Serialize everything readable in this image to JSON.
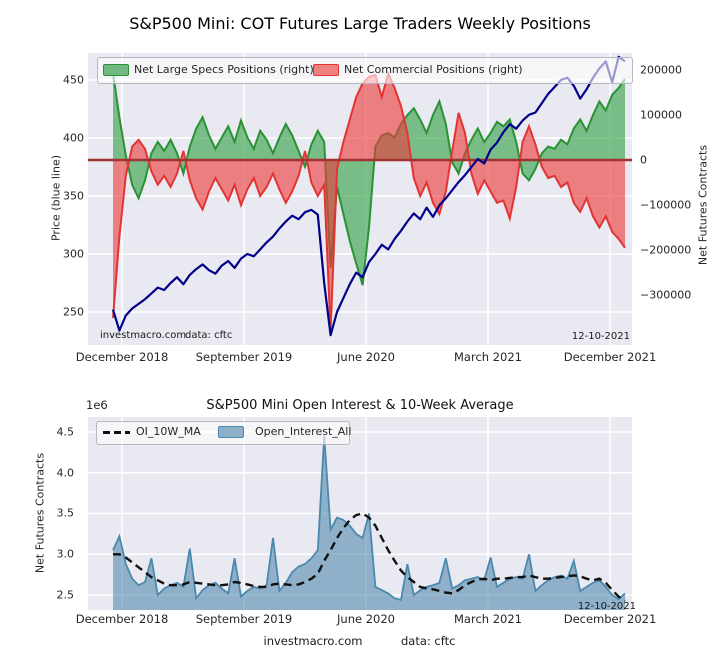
{
  "page": {
    "title": "S&P500 Mini: COT Futures Large Traders Weekly Positions"
  },
  "top_chart": {
    "legend": [
      {
        "label": "Net Large Specs Positions (right)",
        "color": "#2a9235"
      },
      {
        "label": "Net Commercial Positions (right)",
        "color": "#e33434"
      }
    ],
    "ylabel_left": "Price (blue line)",
    "ylabel_right": "Net Futures Contracts",
    "yticks_left": [
      "450",
      "400",
      "350",
      "300",
      "250"
    ],
    "yticks_right": [
      "200000",
      "100000",
      "0",
      "−100000",
      "−200000",
      "−300000"
    ],
    "xticks": [
      "December 2018",
      "September 2019",
      "June 2020",
      "March 2021",
      "December 2021"
    ],
    "watermark_site": "investmacro.com",
    "watermark_source": "data: cftc",
    "date_label": "12-10-2021"
  },
  "bottom_chart": {
    "offset_label": "1e6",
    "title": "S&P500 Mini Open Interest & 10-Week Average",
    "legend": [
      {
        "label": "OI_10W_MA",
        "color": "#111111"
      },
      {
        "label": "Open_Interest_All",
        "color": "#4989ad"
      }
    ],
    "ylabel": "Net Futures Contracts",
    "yticks": [
      "4.5",
      "4.0",
      "3.5",
      "3.0",
      "2.5"
    ],
    "xticks": [
      "December 2018",
      "September 2019",
      "June 2020",
      "March 2021",
      "December 2021"
    ],
    "date_label": "12-10-2021",
    "footer_site": "investmacro.com",
    "footer_source": "data: cftc"
  },
  "chart_data": [
    {
      "type": "area",
      "title": "S&P500 Mini: COT Futures Large Traders Weekly Positions",
      "x_ticks": [
        "December 2018",
        "September 2019",
        "June 2020",
        "March 2021",
        "December 2021"
      ],
      "last_date": "12-10-2021",
      "grid": true,
      "legend_position": "upper-left-row",
      "y_left": {
        "label": "Price (blue line)",
        "ticks": [
          450,
          400,
          350,
          300,
          250
        ],
        "range": [
          222,
          474
        ]
      },
      "y_right": {
        "label": "Net Futures Contracts",
        "ticks": [
          200000,
          100000,
          0,
          -100000,
          -200000,
          -300000
        ],
        "range": [
          -403000,
          243000
        ]
      },
      "series": [
        {
          "name": "Net Large Specs Positions (right)",
          "axis": "right",
          "style": "area",
          "color": "#2a9235",
          "units": "contracts (thousands)",
          "values_thousands": [
            193,
            95,
            10,
            -55,
            -85,
            -45,
            15,
            40,
            20,
            45,
            15,
            -30,
            30,
            70,
            95,
            55,
            25,
            50,
            75,
            40,
            88,
            50,
            25,
            65,
            45,
            15,
            50,
            80,
            55,
            20,
            -15,
            35,
            65,
            40,
            -240,
            -60,
            -120,
            -180,
            -230,
            -278,
            -150,
            30,
            55,
            60,
            50,
            80,
            100,
            115,
            90,
            60,
            100,
            130,
            80,
            -5,
            -30,
            15,
            45,
            70,
            40,
            60,
            85,
            75,
            90,
            40,
            -30,
            -45,
            -20,
            15,
            30,
            25,
            45,
            35,
            70,
            90,
            65,
            100,
            130,
            110,
            145,
            160,
            180
          ]
        },
        {
          "name": "Net Commercial Positions (right)",
          "axis": "right",
          "style": "area",
          "color": "#e33434",
          "units": "contracts (thousands)",
          "values_thousands": [
            -351,
            -170,
            -35,
            30,
            45,
            25,
            -25,
            -55,
            -35,
            -60,
            -30,
            20,
            -45,
            -85,
            -110,
            -70,
            -40,
            -65,
            -90,
            -55,
            -100,
            -65,
            -40,
            -80,
            -60,
            -30,
            -65,
            -95,
            -70,
            -35,
            20,
            -50,
            -80,
            -55,
            -380,
            -20,
            40,
            90,
            140,
            170,
            185,
            189,
            140,
            192,
            160,
            120,
            60,
            -40,
            -80,
            -50,
            -95,
            -120,
            -70,
            20,
            105,
            60,
            -30,
            -75,
            -45,
            -70,
            -95,
            -90,
            -130,
            -60,
            40,
            75,
            35,
            -15,
            -40,
            -35,
            -60,
            -50,
            -95,
            -115,
            -85,
            -125,
            -150,
            -125,
            -160,
            -175,
            -195
          ]
        },
        {
          "name": "Price",
          "axis": "left",
          "style": "line",
          "color": "#00008b",
          "units": "index points",
          "values": [
            252,
            234,
            247,
            253,
            257,
            261,
            266,
            271,
            269,
            275,
            280,
            274,
            282,
            287,
            291,
            286,
            283,
            290,
            294,
            288,
            296,
            300,
            298,
            304,
            310,
            315,
            322,
            328,
            333,
            330,
            336,
            338,
            334,
            275,
            230,
            250,
            262,
            274,
            284,
            280,
            293,
            300,
            308,
            304,
            313,
            320,
            328,
            335,
            330,
            340,
            332,
            342,
            348,
            355,
            362,
            368,
            375,
            382,
            378,
            390,
            396,
            405,
            412,
            408,
            415,
            420,
            422,
            430,
            438,
            444,
            450,
            452,
            445,
            434,
            442,
            452,
            460,
            466,
            448,
            470,
            466
          ]
        }
      ]
    },
    {
      "type": "area",
      "title": "S&P500 Mini Open Interest & 10-Week Average",
      "x_ticks": [
        "December 2018",
        "September 2019",
        "June 2020",
        "March 2021",
        "December 2021"
      ],
      "last_date": "12-10-2021",
      "grid": true,
      "legend_position": "upper-left-row",
      "y": {
        "label": "Net Futures Contracts",
        "multiplier": "1e6",
        "ticks": [
          4.5,
          4.0,
          3.5,
          3.0,
          2.5
        ],
        "range": [
          2.31,
          4.69
        ]
      },
      "series": [
        {
          "name": "OI_10W_MA",
          "style": "dashed-line",
          "color": "#111111",
          "units": "contracts (millions)",
          "values_millions": [
            3.0,
            3.0,
            2.96,
            2.9,
            2.84,
            2.78,
            2.72,
            2.68,
            2.64,
            2.62,
            2.62,
            2.63,
            2.66,
            2.65,
            2.64,
            2.63,
            2.62,
            2.62,
            2.63,
            2.66,
            2.65,
            2.63,
            2.61,
            2.6,
            2.6,
            2.63,
            2.64,
            2.63,
            2.62,
            2.63,
            2.66,
            2.7,
            2.76,
            2.92,
            3.05,
            3.2,
            3.32,
            3.42,
            3.48,
            3.5,
            3.45,
            3.35,
            3.2,
            3.05,
            2.92,
            2.8,
            2.72,
            2.66,
            2.6,
            2.58,
            2.57,
            2.55,
            2.53,
            2.52,
            2.56,
            2.62,
            2.66,
            2.69,
            2.7,
            2.68,
            2.7,
            2.7,
            2.71,
            2.72,
            2.72,
            2.74,
            2.72,
            2.7,
            2.7,
            2.71,
            2.72,
            2.73,
            2.74,
            2.73,
            2.7,
            2.68,
            2.7,
            2.65,
            2.56,
            2.48,
            2.43
          ]
        },
        {
          "name": "Open_Interest_All",
          "style": "area",
          "color": "#4989ad",
          "units": "contracts (millions)",
          "values_millions": [
            3.05,
            3.22,
            2.88,
            2.7,
            2.62,
            2.66,
            2.95,
            2.5,
            2.58,
            2.62,
            2.65,
            2.6,
            3.07,
            2.46,
            2.56,
            2.62,
            2.65,
            2.58,
            2.52,
            2.95,
            2.48,
            2.55,
            2.6,
            2.58,
            2.62,
            3.2,
            2.55,
            2.65,
            2.78,
            2.85,
            2.88,
            2.95,
            3.05,
            4.45,
            3.3,
            3.45,
            3.42,
            3.35,
            3.25,
            3.2,
            3.5,
            2.6,
            2.56,
            2.52,
            2.46,
            2.44,
            2.88,
            2.5,
            2.56,
            2.6,
            2.62,
            2.65,
            2.95,
            2.58,
            2.62,
            2.68,
            2.7,
            2.72,
            2.68,
            2.96,
            2.6,
            2.65,
            2.7,
            2.72,
            2.7,
            3.0,
            2.55,
            2.62,
            2.68,
            2.72,
            2.74,
            2.7,
            2.92,
            2.55,
            2.6,
            2.65,
            2.68,
            2.6,
            2.5,
            2.45,
            2.52
          ]
        }
      ]
    }
  ]
}
